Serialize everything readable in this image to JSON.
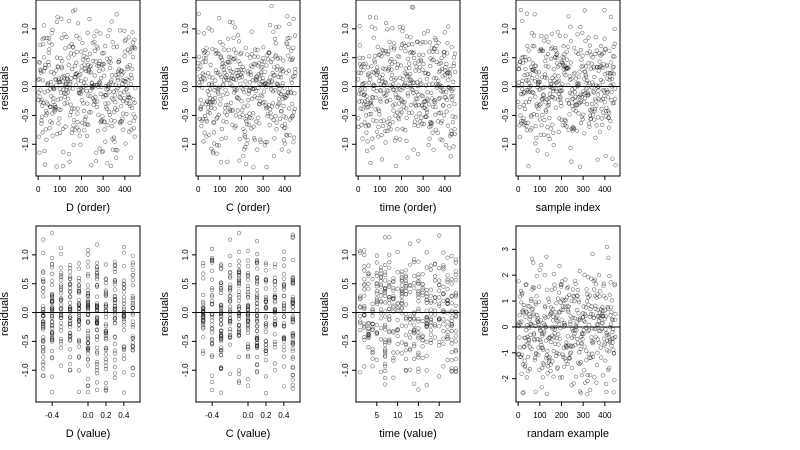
{
  "chart_data": [
    {
      "type": "scatter",
      "xlabel": "D (order)",
      "ylabel": "residuals",
      "xlim": [
        -10,
        470
      ],
      "ylim": [
        -1.55,
        1.5
      ],
      "xticks": [
        0,
        100,
        200,
        300,
        400
      ],
      "yticks": [
        -1.0,
        -0.5,
        0.0,
        0.5,
        1.0
      ],
      "xtick_labels": [
        "0",
        "100",
        "200",
        "300",
        "400"
      ],
      "ytick_labels": [
        "-1.0",
        "-0.5",
        "0.0",
        "0.5",
        "1.0"
      ],
      "hline": 0,
      "n_points": 450,
      "x_values": "index",
      "y_distribution": {
        "min": -1.4,
        "max": 1.4,
        "center": 0.0
      }
    },
    {
      "type": "scatter",
      "xlabel": "C (order)",
      "ylabel": "residuals",
      "xlim": [
        -10,
        470
      ],
      "ylim": [
        -1.55,
        1.5
      ],
      "xticks": [
        0,
        100,
        200,
        300,
        400
      ],
      "yticks": [
        -1.0,
        -0.5,
        0.0,
        0.5,
        1.0
      ],
      "xtick_labels": [
        "0",
        "100",
        "200",
        "300",
        "400"
      ],
      "ytick_labels": [
        "-1.0",
        "-0.5",
        "0.0",
        "0.5",
        "1.0"
      ],
      "hline": 0,
      "n_points": 450,
      "x_values": "index",
      "y_distribution": {
        "min": -1.4,
        "max": 1.4,
        "center": 0.0
      }
    },
    {
      "type": "scatter",
      "xlabel": "time (order)",
      "ylabel": "residuals",
      "xlim": [
        -10,
        470
      ],
      "ylim": [
        -1.55,
        1.5
      ],
      "xticks": [
        0,
        100,
        200,
        300,
        400
      ],
      "yticks": [
        -1.0,
        -0.5,
        0.0,
        0.5,
        1.0
      ],
      "xtick_labels": [
        "0",
        "100",
        "200",
        "300",
        "400"
      ],
      "ytick_labels": [
        "-1.0",
        "-0.5",
        "0.0",
        "0.5",
        "1.0"
      ],
      "hline": 0,
      "n_points": 450,
      "x_values": "index",
      "y_distribution": {
        "min": -1.4,
        "max": 1.4,
        "center": 0.0
      }
    },
    {
      "type": "scatter",
      "xlabel": "sample index",
      "ylabel": "residuals",
      "xlim": [
        -10,
        470
      ],
      "ylim": [
        -1.55,
        1.5
      ],
      "xticks": [
        0,
        100,
        200,
        300,
        400
      ],
      "yticks": [
        -1.0,
        -0.5,
        0.0,
        0.5,
        1.0
      ],
      "xtick_labels": [
        "0",
        "100",
        "200",
        "300",
        "400"
      ],
      "ytick_labels": [
        "-1.0",
        "-0.5",
        "0.0",
        "0.5",
        "1.0"
      ],
      "hline": 0,
      "n_points": 450,
      "x_values": "index",
      "y_distribution": {
        "min": -1.4,
        "max": 1.4,
        "center": 0.0
      }
    },
    {
      "type": "scatter",
      "xlabel": "D (value)",
      "ylabel": "residuals",
      "xlim": [
        -0.58,
        0.58
      ],
      "ylim": [
        -1.55,
        1.5
      ],
      "xticks": [
        -0.4,
        0.0,
        0.2,
        0.4
      ],
      "yticks": [
        -1.0,
        -0.5,
        0.0,
        0.5,
        1.0
      ],
      "xtick_labels": [
        "-0.4",
        "0.0",
        "0.2",
        "0.4"
      ],
      "ytick_labels": [
        "-1.0",
        "-0.5",
        "0.0",
        "0.5",
        "1.0"
      ],
      "hline": 0,
      "n_points": 450,
      "x_levels": [
        -0.5,
        -0.4,
        -0.3,
        -0.2,
        -0.1,
        0.0,
        0.1,
        0.2,
        0.3,
        0.4,
        0.5
      ],
      "y_distribution": {
        "min": -1.4,
        "max": 1.4,
        "center": 0.0
      }
    },
    {
      "type": "scatter",
      "xlabel": "C (value)",
      "ylabel": "residuals",
      "xlim": [
        -0.58,
        0.58
      ],
      "ylim": [
        -1.55,
        1.5
      ],
      "xticks": [
        -0.4,
        0.0,
        0.2,
        0.4
      ],
      "yticks": [
        -1.0,
        -0.5,
        0.0,
        0.5,
        1.0
      ],
      "xtick_labels": [
        "-0.4",
        "0.0",
        "0.2",
        "0.4"
      ],
      "ytick_labels": [
        "-1.0",
        "-0.5",
        "0.0",
        "0.5",
        "1.0"
      ],
      "hline": 0,
      "n_points": 450,
      "x_levels": [
        -0.5,
        -0.4,
        -0.3,
        -0.2,
        -0.1,
        0.0,
        0.1,
        0.2,
        0.3,
        0.4,
        0.5
      ],
      "y_distribution": {
        "min": -1.4,
        "max": 1.4,
        "center": 0.0
      }
    },
    {
      "type": "scatter",
      "xlabel": "time (value)",
      "ylabel": "residuals",
      "xlim": [
        0,
        25
      ],
      "ylim": [
        -1.55,
        1.5
      ],
      "xticks": [
        5,
        10,
        15,
        20
      ],
      "yticks": [
        -1.0,
        -0.5,
        0.0,
        0.5,
        1.0
      ],
      "xtick_labels": [
        "5",
        "10",
        "15",
        "20"
      ],
      "ytick_labels": [
        "-1.0",
        "-0.5",
        "0.0",
        "0.5",
        "1.0"
      ],
      "hline": 0,
      "n_points": 450,
      "x_levels": [
        1,
        2,
        3,
        4,
        5,
        6,
        7,
        8,
        9,
        10,
        11,
        12,
        13,
        14,
        15,
        16,
        17,
        18,
        19,
        20,
        21,
        22,
        23,
        24
      ],
      "y_distribution": {
        "min": -1.4,
        "max": 1.4,
        "center": 0.0
      }
    },
    {
      "type": "scatter",
      "xlabel": "randam example",
      "ylabel": "residuals",
      "xlim": [
        -10,
        470
      ],
      "ylim": [
        -2.9,
        3.9
      ],
      "xticks": [
        0,
        100,
        200,
        300,
        400
      ],
      "yticks": [
        -2,
        -1,
        0,
        1,
        2,
        3
      ],
      "xtick_labels": [
        "0",
        "100",
        "200",
        "300",
        "400"
      ],
      "ytick_labels": [
        "-2",
        "-1",
        "0",
        "1",
        "2",
        "3"
      ],
      "hline": 0,
      "n_points": 450,
      "x_values": "index",
      "y_distribution": {
        "min": -2.6,
        "max": 3.6,
        "center": 0.0
      }
    }
  ],
  "colors": {
    "point_stroke": "#000000",
    "axis": "#000000",
    "background": "#ffffff"
  }
}
